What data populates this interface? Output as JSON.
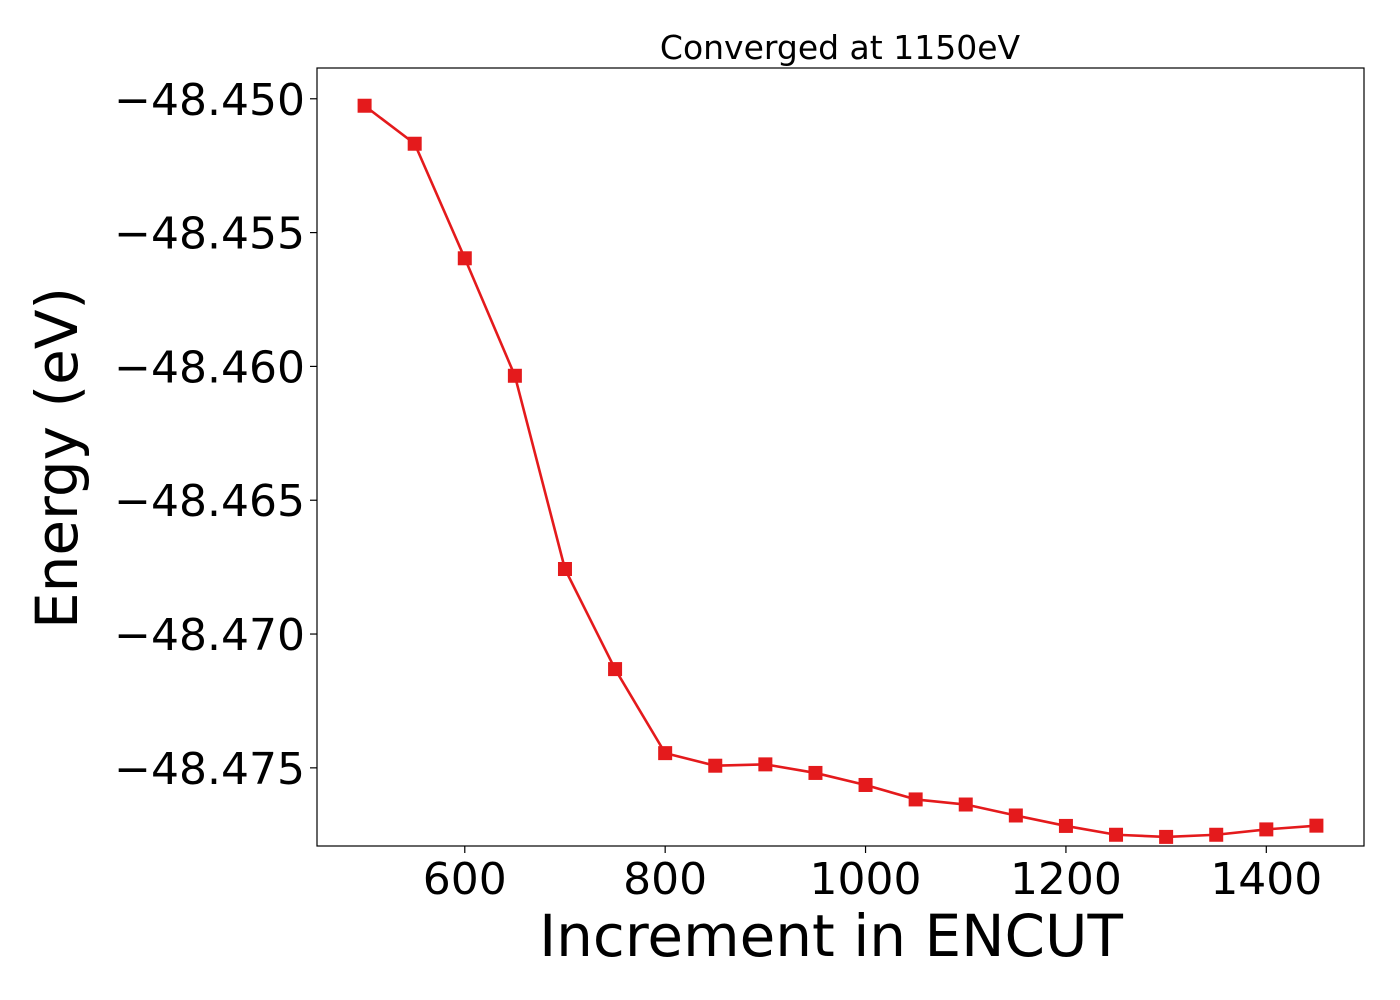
{
  "chart_data": {
    "type": "line",
    "title": "Converged at 1150eV",
    "xlabel": "Increment in ENCUT",
    "ylabel": "Energy (eV)",
    "xlim": [
      452.5,
      1497.5
    ],
    "ylim": [
      -48.47792,
      -48.44885
    ],
    "xticks": [
      600,
      800,
      1000,
      1200,
      1400
    ],
    "xtick_labels": [
      "600",
      "800",
      "1000",
      "1200",
      "1400"
    ],
    "yticks": [
      -48.45,
      -48.455,
      -48.46,
      -48.465,
      -48.47,
      -48.475
    ],
    "ytick_labels": [
      "−48.450",
      "−48.455",
      "−48.460",
      "−48.465",
      "−48.470",
      "−48.475"
    ],
    "grid": false,
    "legend": "none",
    "series": [
      {
        "color": "#e41a1c",
        "marker": "square",
        "x": [
          500,
          550,
          600,
          650,
          700,
          750,
          800,
          850,
          900,
          950,
          1000,
          1050,
          1100,
          1150,
          1200,
          1250,
          1300,
          1350,
          1400,
          1450
        ],
        "y": [
          -48.45026,
          -48.45168,
          -48.45596,
          -48.46035,
          -48.46757,
          -48.47131,
          -48.47445,
          -48.47492,
          -48.47487,
          -48.47519,
          -48.47564,
          -48.47618,
          -48.47637,
          -48.47678,
          -48.47717,
          -48.4775,
          -48.47758,
          -48.4775,
          -48.4773,
          -48.47716
        ]
      }
    ]
  }
}
